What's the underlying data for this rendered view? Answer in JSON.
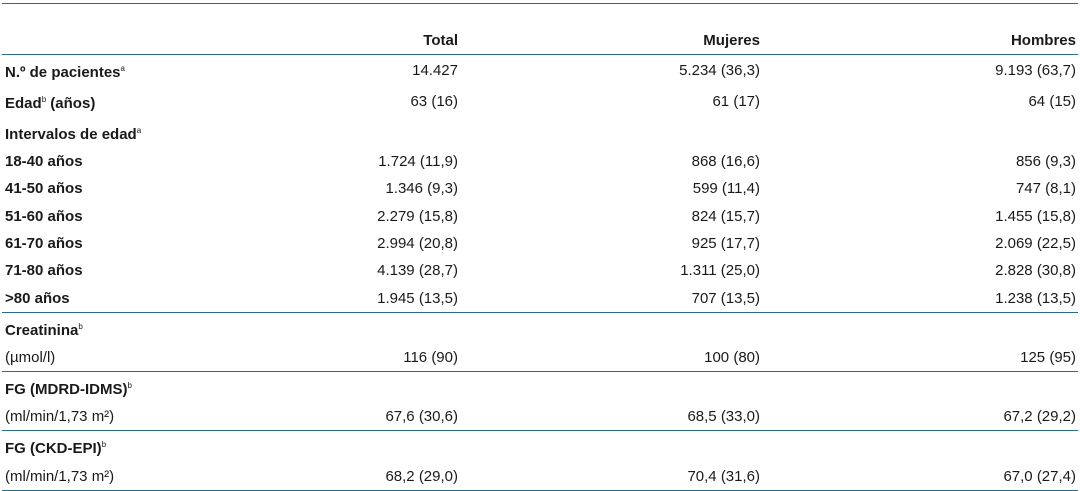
{
  "table": {
    "headers": [
      "",
      "Total",
      "Mujeres",
      "Hombres"
    ],
    "rows": [
      {
        "label": "N.º de pacientes",
        "sup": "a",
        "bold": true,
        "cells": [
          "14.427",
          "5.234 (36,3)",
          "9.193 (63,7)"
        ]
      },
      {
        "label": "Edad",
        "sup": "b",
        "label_suffix": " (años)",
        "bold": true,
        "cells": [
          "63 (16)",
          "61 (17)",
          "64 (15)"
        ]
      },
      {
        "label": "Intervalos de edad",
        "sup": "a",
        "bold": true,
        "cells": [
          "",
          "",
          ""
        ]
      },
      {
        "label": "18-40 años",
        "bold": true,
        "cells": [
          "1.724 (11,9)",
          "868 (16,6)",
          "856 (9,3)"
        ]
      },
      {
        "label": "41-50 años",
        "bold": true,
        "cells": [
          "1.346 (9,3)",
          "599 (11,4)",
          "747 (8,1)"
        ]
      },
      {
        "label": "51-60 años",
        "bold": true,
        "cells": [
          "2.279 (15,8)",
          "824 (15,7)",
          "1.455 (15,8)"
        ]
      },
      {
        "label": "61-70 años",
        "bold": true,
        "cells": [
          "2.994 (20,8)",
          "925 (17,7)",
          "2.069 (22,5)"
        ]
      },
      {
        "label": "71-80 años",
        "bold": true,
        "cells": [
          "4.139 (28,7)",
          "1.311 (25,0)",
          "2.828 (30,8)"
        ]
      },
      {
        "label": ">80 años",
        "bold": true,
        "cells": [
          "1.945 (13,5)",
          "707 (13,5)",
          "1.238 (13,5)"
        ]
      },
      {
        "label": "Creatinina",
        "sup": "b",
        "bold": true,
        "cells": [
          "",
          "",
          ""
        ]
      },
      {
        "label": "(µmol/l)",
        "bold": false,
        "cells": [
          "116 (90)",
          "100 (80)",
          "125 (95)"
        ]
      },
      {
        "label": "FG (MDRD-IDMS)",
        "sup": "b",
        "bold": true,
        "cells": [
          "",
          "",
          ""
        ]
      },
      {
        "label": "(ml/min/1,73 m²)",
        "bold": false,
        "cells": [
          "67,6 (30,6)",
          "68,5 (33,0)",
          "67,2 (29,2)"
        ]
      },
      {
        "label": "FG (CKD-EPI)",
        "sup": "b",
        "bold": true,
        "cells": [
          "",
          "",
          ""
        ]
      },
      {
        "label": "(ml/min/1,73 m²)",
        "bold": false,
        "cells": [
          "68,2 (29,0)",
          "70,4 (31,6)",
          "67,0 (27,4)"
        ]
      }
    ]
  },
  "colors": {
    "rule": "#2a6b8a",
    "text": "#1a1a1a"
  }
}
